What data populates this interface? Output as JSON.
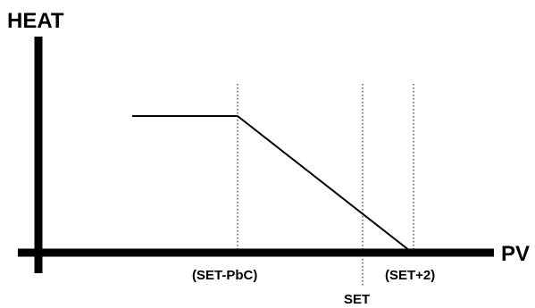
{
  "labels": {
    "y_axis": "HEAT",
    "x_axis": "PV",
    "set_minus_pbc": "(SET-PbC)",
    "set": "SET",
    "set_plus_2": "(SET+2)"
  },
  "colors": {
    "ink": "#000000",
    "background": "#ffffff"
  }
}
